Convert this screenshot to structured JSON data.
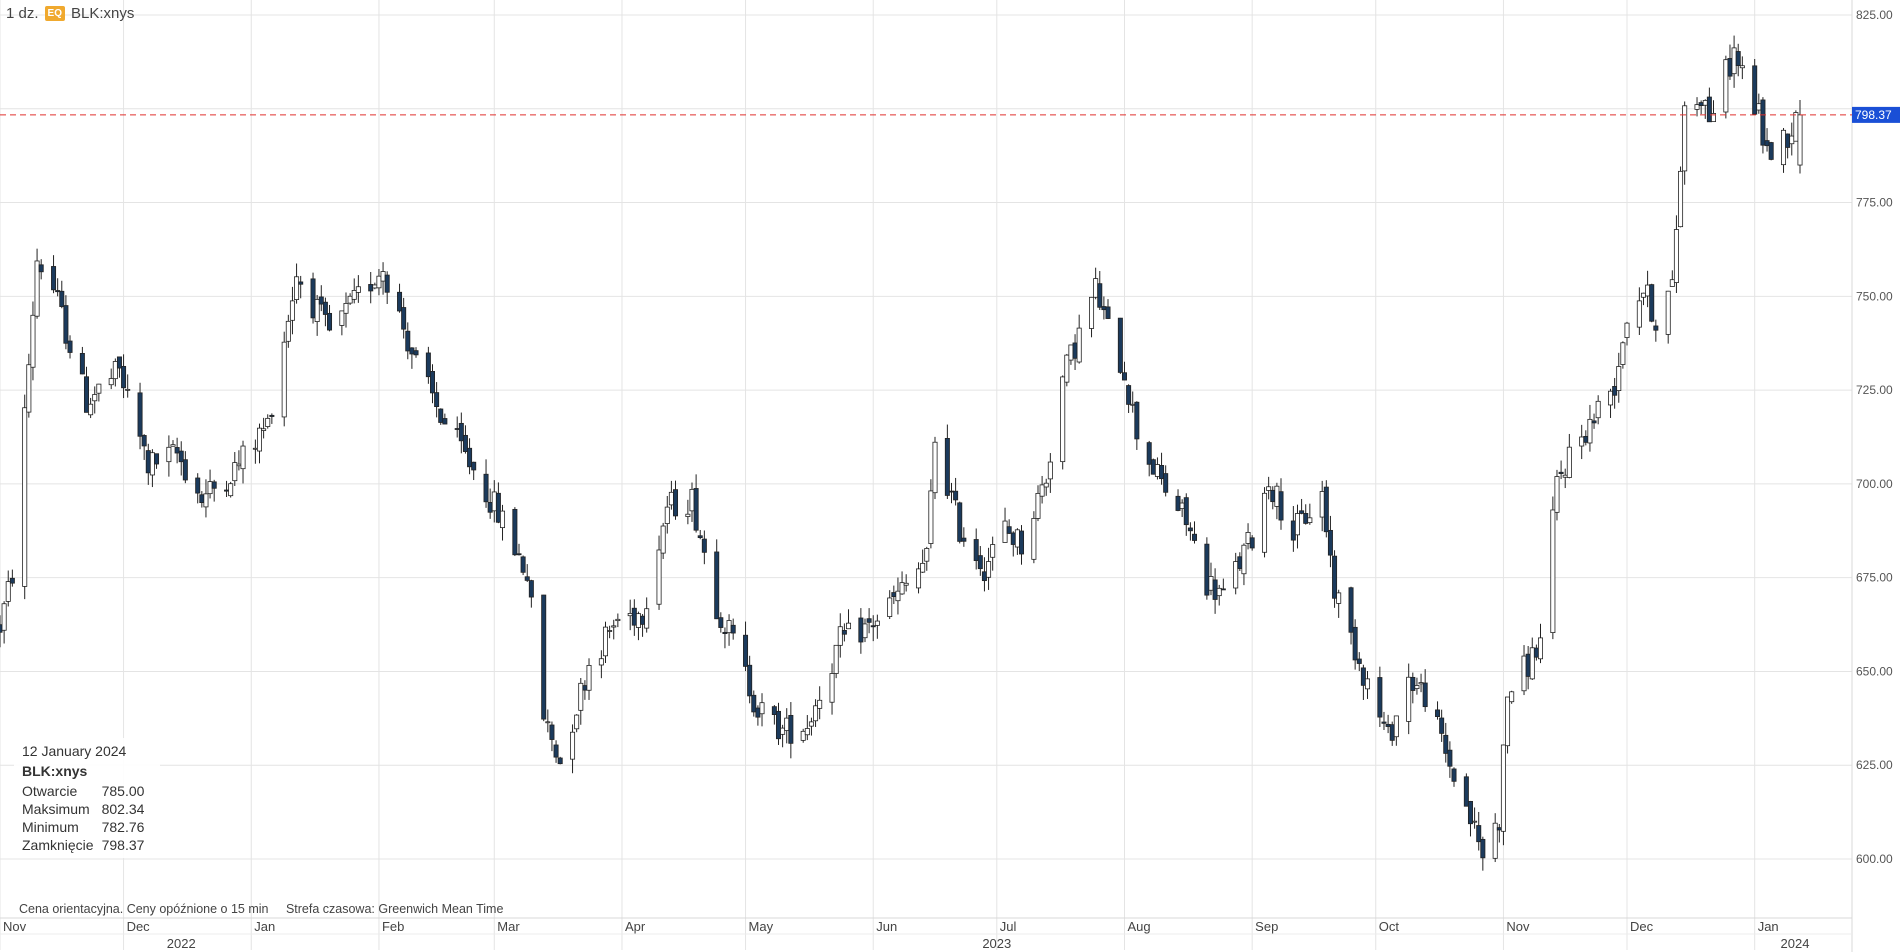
{
  "header": {
    "interval": "1 dz.",
    "badge": "EQ",
    "symbol": "BLK:xnys"
  },
  "tooltip": {
    "date": "12 January 2024",
    "symbol": "BLK:xnys",
    "rows": [
      {
        "label": "Otwarcie",
        "value": "785.00"
      },
      {
        "label": "Maksimum",
        "value": "802.34"
      },
      {
        "label": "Minimum",
        "value": "782.76"
      },
      {
        "label": "Zamknięcie",
        "value": "798.37"
      }
    ]
  },
  "footnote": {
    "delay": "Cena orientacyjna. Ceny opóźnione o 15 min",
    "timezone": "Strefa czasowa: Greenwich Mean Time"
  },
  "colors": {
    "up_fill": "#ffffff",
    "down_fill": "#1b3a5c",
    "wick": "#222222",
    "grid": "#e4e4e4",
    "price_line": "#e0302e",
    "price_badge": "#1a4fd6"
  },
  "chart_data": {
    "type": "candlestick",
    "symbol": "BLK:xnys",
    "interval": "1 dz.",
    "ylim": [
      580,
      828
    ],
    "y_ticks": [
      "825.00",
      "775.00",
      "750.00",
      "725.00",
      "700.00",
      "675.00",
      "650.00",
      "625.00",
      "600.00"
    ],
    "last_price": "798.37",
    "x_month_labels": [
      "Nov",
      "Dec",
      "Jan",
      "Feb",
      "Mar",
      "Apr",
      "May",
      "Jun",
      "Jul",
      "Aug",
      "Sep",
      "Oct",
      "Nov",
      "Dec",
      "Jan"
    ],
    "x_year_labels": [
      "2022",
      "2023",
      "2024"
    ],
    "anchors": [
      {
        "date": "2022-11-01",
        "price": 662
      },
      {
        "date": "2022-11-04",
        "price": 676
      },
      {
        "date": "2022-11-10",
        "price": 760
      },
      {
        "date": "2022-11-14",
        "price": 752
      },
      {
        "date": "2022-11-22",
        "price": 722
      },
      {
        "date": "2022-11-30",
        "price": 730
      },
      {
        "date": "2022-12-07",
        "price": 705
      },
      {
        "date": "2022-12-14",
        "price": 708
      },
      {
        "date": "2022-12-20",
        "price": 696
      },
      {
        "date": "2022-12-28",
        "price": 704
      },
      {
        "date": "2023-01-05",
        "price": 716
      },
      {
        "date": "2023-01-12",
        "price": 756
      },
      {
        "date": "2023-01-20",
        "price": 740
      },
      {
        "date": "2023-02-02",
        "price": 758
      },
      {
        "date": "2023-02-10",
        "price": 732
      },
      {
        "date": "2023-02-17",
        "price": 716
      },
      {
        "date": "2023-02-24",
        "price": 704
      },
      {
        "date": "2023-03-03",
        "price": 690
      },
      {
        "date": "2023-03-09",
        "price": 676
      },
      {
        "date": "2023-03-13",
        "price": 638
      },
      {
        "date": "2023-03-17",
        "price": 626
      },
      {
        "date": "2023-03-24",
        "price": 652
      },
      {
        "date": "2023-03-31",
        "price": 664
      },
      {
        "date": "2023-04-06",
        "price": 666
      },
      {
        "date": "2023-04-12",
        "price": 694
      },
      {
        "date": "2023-04-18",
        "price": 696
      },
      {
        "date": "2023-04-24",
        "price": 668
      },
      {
        "date": "2023-04-28",
        "price": 658
      },
      {
        "date": "2023-05-04",
        "price": 640
      },
      {
        "date": "2023-05-10",
        "price": 634
      },
      {
        "date": "2023-05-16",
        "price": 636
      },
      {
        "date": "2023-05-24",
        "price": 658
      },
      {
        "date": "2023-05-31",
        "price": 662
      },
      {
        "date": "2023-06-07",
        "price": 670
      },
      {
        "date": "2023-06-14",
        "price": 680
      },
      {
        "date": "2023-06-16",
        "price": 712
      },
      {
        "date": "2023-06-22",
        "price": 688
      },
      {
        "date": "2023-06-28",
        "price": 678
      },
      {
        "date": "2023-07-03",
        "price": 688
      },
      {
        "date": "2023-07-07",
        "price": 684
      },
      {
        "date": "2023-07-13",
        "price": 702
      },
      {
        "date": "2023-07-17",
        "price": 728
      },
      {
        "date": "2023-07-21",
        "price": 740
      },
      {
        "date": "2023-07-25",
        "price": 752
      },
      {
        "date": "2023-07-28",
        "price": 741
      },
      {
        "date": "2023-08-01",
        "price": 730
      },
      {
        "date": "2023-08-04",
        "price": 714
      },
      {
        "date": "2023-08-09",
        "price": 702
      },
      {
        "date": "2023-08-16",
        "price": 690
      },
      {
        "date": "2023-08-21",
        "price": 674
      },
      {
        "date": "2023-08-25",
        "price": 670
      },
      {
        "date": "2023-09-01",
        "price": 686
      },
      {
        "date": "2023-09-05",
        "price": 701
      },
      {
        "date": "2023-09-11",
        "price": 687
      },
      {
        "date": "2023-09-18",
        "price": 697
      },
      {
        "date": "2023-09-21",
        "price": 672
      },
      {
        "date": "2023-09-28",
        "price": 650
      },
      {
        "date": "2023-10-04",
        "price": 632
      },
      {
        "date": "2023-10-09",
        "price": 648
      },
      {
        "date": "2023-10-13",
        "price": 644
      },
      {
        "date": "2023-10-18",
        "price": 628
      },
      {
        "date": "2023-10-23",
        "price": 614
      },
      {
        "date": "2023-10-27",
        "price": 601
      },
      {
        "date": "2023-10-31",
        "price": 611
      },
      {
        "date": "2023-11-02",
        "price": 644
      },
      {
        "date": "2023-11-07",
        "price": 652
      },
      {
        "date": "2023-11-10",
        "price": 658
      },
      {
        "date": "2023-11-14",
        "price": 700
      },
      {
        "date": "2023-11-17",
        "price": 708
      },
      {
        "date": "2023-11-22",
        "price": 716
      },
      {
        "date": "2023-11-28",
        "price": 727
      },
      {
        "date": "2023-12-01",
        "price": 745
      },
      {
        "date": "2023-12-05",
        "price": 752
      },
      {
        "date": "2023-12-08",
        "price": 744
      },
      {
        "date": "2023-12-12",
        "price": 752
      },
      {
        "date": "2023-12-14",
        "price": 785
      },
      {
        "date": "2023-12-15",
        "price": 800
      },
      {
        "date": "2023-12-19",
        "price": 804
      },
      {
        "date": "2023-12-21",
        "price": 798
      },
      {
        "date": "2023-12-27",
        "price": 815
      },
      {
        "date": "2024-01-02",
        "price": 798
      },
      {
        "date": "2024-01-04",
        "price": 788
      },
      {
        "date": "2024-01-08",
        "price": 792
      },
      {
        "date": "2024-01-10",
        "price": 795
      },
      {
        "date": "2024-01-12",
        "price": 798.37
      }
    ],
    "last_bar": {
      "date": "2024-01-12",
      "open": 785.0,
      "high": 802.34,
      "low": 782.76,
      "close": 798.37
    }
  }
}
